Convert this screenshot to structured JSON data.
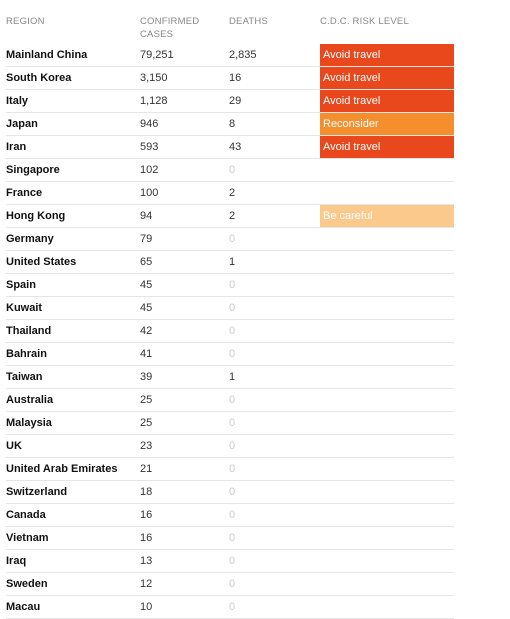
{
  "headers": {
    "region": "REGION",
    "cases": "CONFIRMED CASES",
    "deaths": "DEATHS",
    "risk": "C.D.C. RISK LEVEL"
  },
  "rows": [
    {
      "region": "Mainland China",
      "cases": "79,251",
      "deaths": "2,835",
      "risk": "Avoid travel",
      "risk_level": "avoid"
    },
    {
      "region": "South Korea",
      "cases": "3,150",
      "deaths": "16",
      "risk": "Avoid travel",
      "risk_level": "avoid"
    },
    {
      "region": "Italy",
      "cases": "1,128",
      "deaths": "29",
      "risk": "Avoid travel",
      "risk_level": "avoid"
    },
    {
      "region": "Japan",
      "cases": "946",
      "deaths": "8",
      "risk": "Reconsider",
      "risk_level": "reconsider"
    },
    {
      "region": "Iran",
      "cases": "593",
      "deaths": "43",
      "risk": "Avoid travel",
      "risk_level": "avoid"
    },
    {
      "region": "Singapore",
      "cases": "102",
      "deaths": "0",
      "risk": "",
      "risk_level": ""
    },
    {
      "region": "France",
      "cases": "100",
      "deaths": "2",
      "risk": "",
      "risk_level": ""
    },
    {
      "region": "Hong Kong",
      "cases": "94",
      "deaths": "2",
      "risk": "Be careful",
      "risk_level": "careful"
    },
    {
      "region": "Germany",
      "cases": "79",
      "deaths": "0",
      "risk": "",
      "risk_level": ""
    },
    {
      "region": "United States",
      "cases": "65",
      "deaths": "1",
      "risk": "",
      "risk_level": ""
    },
    {
      "region": "Spain",
      "cases": "45",
      "deaths": "0",
      "risk": "",
      "risk_level": ""
    },
    {
      "region": "Kuwait",
      "cases": "45",
      "deaths": "0",
      "risk": "",
      "risk_level": ""
    },
    {
      "region": "Thailand",
      "cases": "42",
      "deaths": "0",
      "risk": "",
      "risk_level": ""
    },
    {
      "region": "Bahrain",
      "cases": "41",
      "deaths": "0",
      "risk": "",
      "risk_level": ""
    },
    {
      "region": "Taiwan",
      "cases": "39",
      "deaths": "1",
      "risk": "",
      "risk_level": ""
    },
    {
      "region": "Australia",
      "cases": "25",
      "deaths": "0",
      "risk": "",
      "risk_level": ""
    },
    {
      "region": "Malaysia",
      "cases": "25",
      "deaths": "0",
      "risk": "",
      "risk_level": ""
    },
    {
      "region": "UK",
      "cases": "23",
      "deaths": "0",
      "risk": "",
      "risk_level": ""
    },
    {
      "region": "United Arab Emirates",
      "cases": "21",
      "deaths": "0",
      "risk": "",
      "risk_level": ""
    },
    {
      "region": "Switzerland",
      "cases": "18",
      "deaths": "0",
      "risk": "",
      "risk_level": ""
    },
    {
      "region": "Canada",
      "cases": "16",
      "deaths": "0",
      "risk": "",
      "risk_level": ""
    },
    {
      "region": "Vietnam",
      "cases": "16",
      "deaths": "0",
      "risk": "",
      "risk_level": ""
    },
    {
      "region": "Iraq",
      "cases": "13",
      "deaths": "0",
      "risk": "",
      "risk_level": ""
    },
    {
      "region": "Sweden",
      "cases": "12",
      "deaths": "0",
      "risk": "",
      "risk_level": ""
    },
    {
      "region": "Macau",
      "cases": "10",
      "deaths": "0",
      "risk": "",
      "risk_level": ""
    }
  ],
  "colors": {
    "avoid": "#e8481c",
    "reconsider": "#f58f2e",
    "careful": "#fcc98c"
  }
}
